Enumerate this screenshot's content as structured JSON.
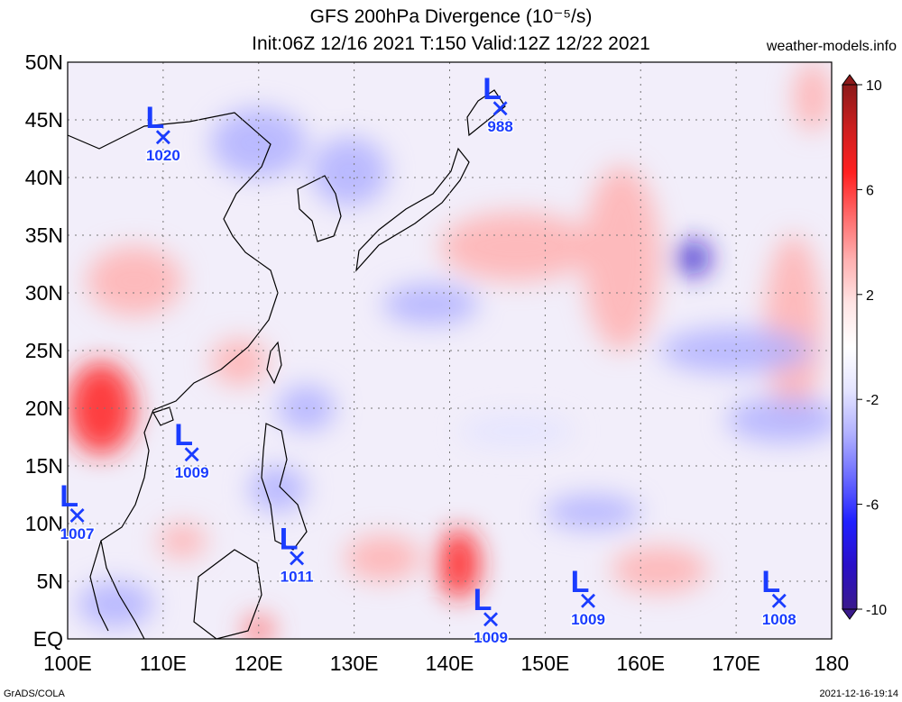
{
  "title_line1": "GFS 200hPa Divergence (10⁻⁵/s)",
  "title_line2": "Init:06Z 12/16 2021 T:150 Valid:12Z 12/22 2021",
  "site": "weather-models.info",
  "footer_left": "GrADS/COLA",
  "footer_right": "2021-12-16-19:14",
  "lat_labels": [
    {
      "lat": 50,
      "label": "50N"
    },
    {
      "lat": 45,
      "label": "45N"
    },
    {
      "lat": 40,
      "label": "40N"
    },
    {
      "lat": 35,
      "label": "35N"
    },
    {
      "lat": 30,
      "label": "30N"
    },
    {
      "lat": 25,
      "label": "25N"
    },
    {
      "lat": 20,
      "label": "20N"
    },
    {
      "lat": 15,
      "label": "15N"
    },
    {
      "lat": 10,
      "label": "10N"
    },
    {
      "lat": 5,
      "label": "5N"
    },
    {
      "lat": 0,
      "label": "EQ"
    }
  ],
  "lon_labels": [
    {
      "lon": 100,
      "label": "100E"
    },
    {
      "lon": 110,
      "label": "110E"
    },
    {
      "lon": 120,
      "label": "120E"
    },
    {
      "lon": 130,
      "label": "130E"
    },
    {
      "lon": 140,
      "label": "140E"
    },
    {
      "lon": 150,
      "label": "150E"
    },
    {
      "lon": 160,
      "label": "160E"
    },
    {
      "lon": 170,
      "label": "170E"
    },
    {
      "lon": 180,
      "label": "180"
    }
  ],
  "colorbar": {
    "ticks": [
      {
        "value": 10,
        "label": "10"
      },
      {
        "value": 6,
        "label": "6"
      },
      {
        "value": 2,
        "label": "2"
      },
      {
        "value": -2,
        "label": "-2"
      },
      {
        "value": -6,
        "label": "-6"
      },
      {
        "value": -10,
        "label": "-10"
      }
    ],
    "colors_top_to_bottom": [
      "#8c1a1a",
      "#cc1f1f",
      "#ff2020",
      "#ff6a6a",
      "#ffb0b0",
      "#ffe4e4",
      "#ffffff",
      "#e4e4ff",
      "#b0b0ff",
      "#6a6aff",
      "#2020ff",
      "#2a10c8",
      "#3a1a8c"
    ]
  },
  "lows": [
    {
      "lon": 110.0,
      "lat": 43.5,
      "symbol": "L",
      "pressure": "1020"
    },
    {
      "lon": 145.3,
      "lat": 46.0,
      "symbol": "L",
      "pressure": "988"
    },
    {
      "lon": 113.0,
      "lat": 16.0,
      "symbol": "L",
      "pressure": "1009"
    },
    {
      "lon": 101.0,
      "lat": 10.7,
      "symbol": "L",
      "pressure": "1007"
    },
    {
      "lon": 124.0,
      "lat": 7.0,
      "symbol": "L",
      "pressure": "1011"
    },
    {
      "lon": 144.3,
      "lat": 1.7,
      "symbol": "L",
      "pressure": "1009"
    },
    {
      "lon": 154.5,
      "lat": 3.3,
      "symbol": "L",
      "pressure": "1009"
    },
    {
      "lon": 174.5,
      "lat": 3.3,
      "symbol": "L",
      "pressure": "1008"
    }
  ],
  "field_blobs": [
    {
      "lon": 103.5,
      "lat": 20.0,
      "rx": 3.5,
      "ry": 4.0,
      "value": 6
    },
    {
      "lon": 107.0,
      "lat": 31.0,
      "rx": 5.0,
      "ry": 3.0,
      "value": 4
    },
    {
      "lon": 112.0,
      "lat": 8.5,
      "rx": 2.5,
      "ry": 1.5,
      "value": 3
    },
    {
      "lon": 141.0,
      "lat": 6.5,
      "rx": 2.2,
      "ry": 3.0,
      "value": 6
    },
    {
      "lon": 120.0,
      "lat": 0.8,
      "rx": 1.6,
      "ry": 1.2,
      "value": 5
    },
    {
      "lon": 147.0,
      "lat": 34.0,
      "rx": 8.0,
      "ry": 3.0,
      "value": 3
    },
    {
      "lon": 158.0,
      "lat": 33.0,
      "rx": 4.0,
      "ry": 8.0,
      "value": 3
    },
    {
      "lon": 176.0,
      "lat": 27.0,
      "rx": 3.0,
      "ry": 8.0,
      "value": 3
    },
    {
      "lon": 178.0,
      "lat": 47.0,
      "rx": 2.0,
      "ry": 3.0,
      "value": 4
    },
    {
      "lon": 118.0,
      "lat": 24.0,
      "rx": 3.0,
      "ry": 2.0,
      "value": 3
    },
    {
      "lon": 162.0,
      "lat": 6.0,
      "rx": 5.0,
      "ry": 2.0,
      "value": 3
    },
    {
      "lon": 133.0,
      "lat": 7.0,
      "rx": 4.0,
      "ry": 2.0,
      "value": 3
    },
    {
      "lon": 165.5,
      "lat": 33.0,
      "rx": 1.8,
      "ry": 1.5,
      "value": -8
    },
    {
      "lon": 125.0,
      "lat": 20.0,
      "rx": 3.0,
      "ry": 2.0,
      "value": -4
    },
    {
      "lon": 138.0,
      "lat": 29.0,
      "rx": 5.0,
      "ry": 1.8,
      "value": -4
    },
    {
      "lon": 129.5,
      "lat": 40.5,
      "rx": 4.0,
      "ry": 3.0,
      "value": -4
    },
    {
      "lon": 120.0,
      "lat": 43.0,
      "rx": 5.0,
      "ry": 3.0,
      "value": -3
    },
    {
      "lon": 155.0,
      "lat": 11.0,
      "rx": 5.0,
      "ry": 1.5,
      "value": -4
    },
    {
      "lon": 170.0,
      "lat": 25.0,
      "rx": 8.0,
      "ry": 2.0,
      "value": -3
    },
    {
      "lon": 175.0,
      "lat": 19.0,
      "rx": 6.0,
      "ry": 2.0,
      "value": -3
    },
    {
      "lon": 105.0,
      "lat": 3.0,
      "rx": 4.0,
      "ry": 2.0,
      "value": -3
    },
    {
      "lon": 122.0,
      "lat": 13.0,
      "rx": 3.0,
      "ry": 2.0,
      "value": -3
    },
    {
      "lon": 147.0,
      "lat": 18.0,
      "rx": 6.0,
      "ry": 1.5,
      "value": -2
    }
  ]
}
